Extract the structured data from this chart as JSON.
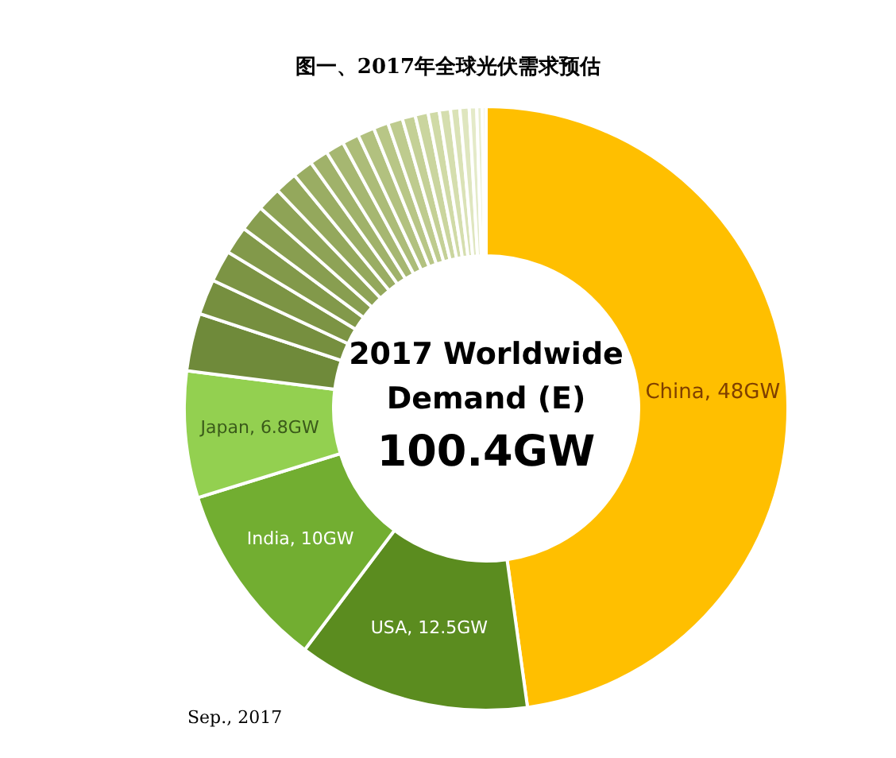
{
  "chart_data": {
    "type": "donut",
    "title": "图一、2017年全球光伏需求预估",
    "categories": [
      "China",
      "USA",
      "India",
      "Japan",
      null,
      null,
      null,
      null,
      null,
      null,
      null,
      null,
      null,
      null,
      null,
      null,
      null,
      null,
      null,
      null,
      null,
      null,
      null,
      null,
      null,
      null,
      null
    ],
    "values": [
      48,
      12.5,
      10,
      6.8,
      3.1,
      1.9,
      1.7,
      1.5,
      1.4,
      1.3,
      1.2,
      1.1,
      1.0,
      1.0,
      0.9,
      0.9,
      0.8,
      0.8,
      0.7,
      0.7,
      0.6,
      0.6,
      0.5,
      0.5,
      0.4,
      0.3,
      0.2
    ],
    "value_labels": [
      "48GW",
      "12.5GW",
      "10GW",
      "6.8GW",
      null,
      null,
      null,
      null,
      null,
      null,
      null,
      null,
      null,
      null,
      null,
      null,
      null,
      null,
      null,
      null,
      null,
      null,
      null,
      null,
      null,
      null,
      null
    ],
    "colors": [
      "#ffbf00",
      "#5b8c1f",
      "#72ae31",
      "#93d050",
      "#6f8a3a",
      "#768f3f",
      "#7c9444",
      "#82994a",
      "#889e50",
      "#8ea356",
      "#94a85c",
      "#9aad63",
      "#a0b26a",
      "#a6b771",
      "#acbc78",
      "#b2c17f",
      "#b8c686",
      "#becb8e",
      "#c4d096",
      "#cad59e",
      "#d0daa6",
      "#d5deae",
      "#dae2b6",
      "#dfe6bf",
      "#e4eac8",
      "#e9eed1",
      "#eef2da"
    ],
    "annotations": [
      "2017 Worldwide",
      "Demand (E)",
      "100.4GW",
      "Sep., 2017"
    ]
  }
}
